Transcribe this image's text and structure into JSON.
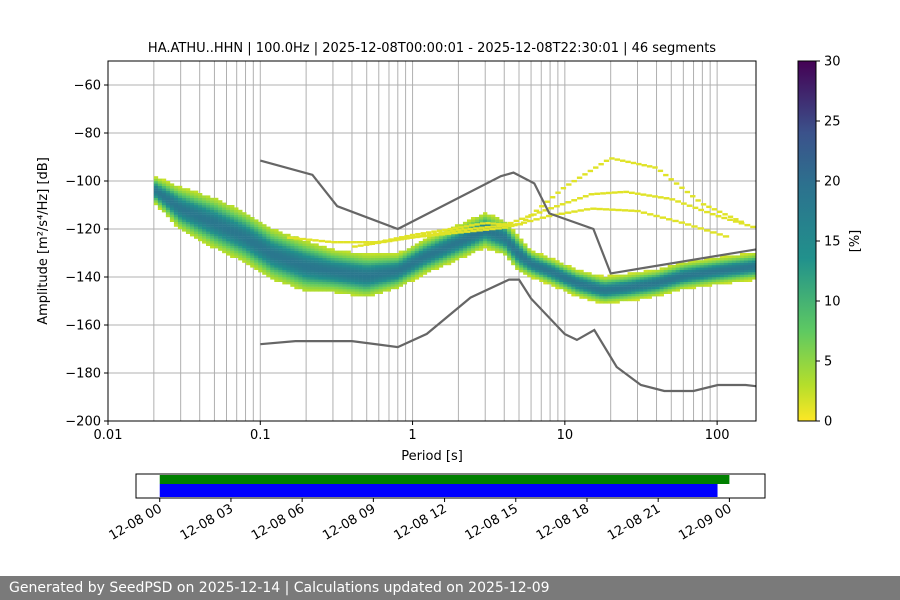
{
  "footer": {
    "text": "Generated by SeedPSD on 2025-12-14 | Calculations updated on 2025-12-09"
  },
  "colors": {
    "grid": "#b0b0b0",
    "model_lines": "#666666",
    "availability_primary": "#008000",
    "availability_secondary": "#0000ff",
    "colormap": [
      "#fde725",
      "#5ec962",
      "#21918c",
      "#3b528b",
      "#440154"
    ]
  },
  "chart_data": [
    {
      "type": "heatmap",
      "title": "HA.ATHU..HHN | 100.0Hz | 2025-12-08T00:00:01 - 2025-12-08T22:30:01 | 46 segments",
      "xlabel": "Period [s]",
      "ylabel": "Amplitude [m²/s⁴/Hz] [dB]",
      "xscale": "log",
      "xlim": [
        0.01,
        180
      ],
      "ylim": [
        -200,
        -50
      ],
      "x_ticks": [
        0.01,
        0.1,
        1,
        10,
        100
      ],
      "x_tick_labels": [
        "0.01",
        "0.1",
        "1",
        "10",
        "100"
      ],
      "y_ticks": [
        -200,
        -180,
        -160,
        -140,
        -120,
        -100,
        -80,
        -60
      ],
      "y_tick_labels": [
        "−200",
        "−180",
        "−160",
        "−140",
        "−120",
        "−100",
        "−80",
        "−60"
      ],
      "grid": true,
      "colorbar": {
        "label": "[%]",
        "range": [
          0,
          30
        ],
        "ticks": [
          0,
          5,
          10,
          15,
          20,
          25,
          30
        ],
        "tick_labels": [
          "0",
          "5",
          "10",
          "15",
          "20",
          "25",
          "30"
        ]
      },
      "psd_band": {
        "x": [
          0.02,
          0.03,
          0.05,
          0.08,
          0.12,
          0.2,
          0.3,
          0.5,
          0.8,
          1.2,
          2.0,
          3.0,
          4.0,
          5.0,
          6.0,
          8.0,
          12.0,
          18.0,
          25.0,
          40.0,
          60.0,
          100.0,
          180.0
        ],
        "y": [
          -104,
          -112,
          -118,
          -124,
          -131,
          -136,
          -138,
          -140,
          -138,
          -132,
          -126,
          -121,
          -124,
          -131,
          -135,
          -138,
          -143,
          -146,
          -145,
          -143,
          -140,
          -138,
          -136
        ],
        "spread": [
          3,
          5,
          6,
          6,
          6,
          6,
          5,
          5,
          4,
          4,
          4,
          4,
          4,
          4,
          3,
          3,
          3,
          3,
          3,
          3,
          3,
          3,
          3
        ]
      },
      "psd_outliers": [
        {
          "x": [
            0.5,
            1.0,
            2.0,
            3.0,
            5.0,
            10.0,
            20.0,
            40.0,
            80.0,
            150.0
          ],
          "y": [
            -127,
            -123,
            -120,
            -118,
            -119,
            -103,
            -91,
            -95,
            -110,
            -118
          ]
        },
        {
          "x": [
            0.4,
            1.0,
            2.0,
            4.0,
            8.0,
            15.0,
            25.0,
            50.0,
            100.0,
            180.0
          ],
          "y": [
            -128,
            -124,
            -121,
            -119,
            -112,
            -106,
            -105,
            -108,
            -115,
            -120
          ]
        },
        {
          "x": [
            0.15,
            0.3,
            0.6,
            1.0,
            2.0,
            4.0,
            8.0,
            15.0,
            30.0,
            60.0,
            120.0
          ],
          "y": [
            -124,
            -126,
            -126,
            -124,
            -122,
            -120,
            -115,
            -112,
            -113,
            -118,
            -124
          ]
        }
      ],
      "high_noise_model": {
        "name": "",
        "x": [
          0.1,
          0.22,
          0.32,
          0.8,
          3.8,
          4.6,
          6.3,
          7.9,
          15.4,
          20.0,
          180.0
        ],
        "y": [
          -91.5,
          -97.4,
          -110.5,
          -120.0,
          -98.0,
          -96.5,
          -101.0,
          -113.5,
          -120.0,
          -138.5,
          -128.5
        ]
      },
      "low_noise_model": {
        "name": "",
        "x": [
          0.1,
          0.17,
          0.4,
          0.8,
          1.24,
          2.4,
          4.3,
          5.0,
          6.0,
          10.0,
          12.0,
          15.6,
          21.9,
          31.6,
          45.0,
          70.0,
          101.0,
          154.0,
          180.0
        ],
        "y": [
          -168.0,
          -166.7,
          -166.7,
          -169.2,
          -163.7,
          -148.6,
          -141.1,
          -141.1,
          -149.0,
          -163.8,
          -166.2,
          -162.1,
          -177.5,
          -185.0,
          -187.5,
          -187.5,
          -185.0,
          -185.0,
          -185.5
        ]
      }
    },
    {
      "type": "bar",
      "title": "",
      "xlabel": "",
      "ylabel": "",
      "xlim": [
        "2025-12-07T23:00",
        "2025-12-09T01:30"
      ],
      "x_ticks": [
        "2025-12-08T00:00",
        "2025-12-08T03:00",
        "2025-12-08T06:00",
        "2025-12-08T09:00",
        "2025-12-08T12:00",
        "2025-12-08T15:00",
        "2025-12-08T18:00",
        "2025-12-08T21:00",
        "2025-12-09T00:00"
      ],
      "x_tick_labels": [
        "12-08 00",
        "12-08 03",
        "12-08 06",
        "12-08 09",
        "12-08 12",
        "12-08 15",
        "12-08 18",
        "12-08 21",
        "12-09 00"
      ],
      "series": [
        {
          "start": "2025-12-08T00:00:01",
          "end": "2025-12-08T24:00",
          "color": "#008000"
        },
        {
          "start": "2025-12-08T00:00:01",
          "end": "2025-12-08T23:30",
          "color": "#0000ff"
        }
      ]
    }
  ]
}
